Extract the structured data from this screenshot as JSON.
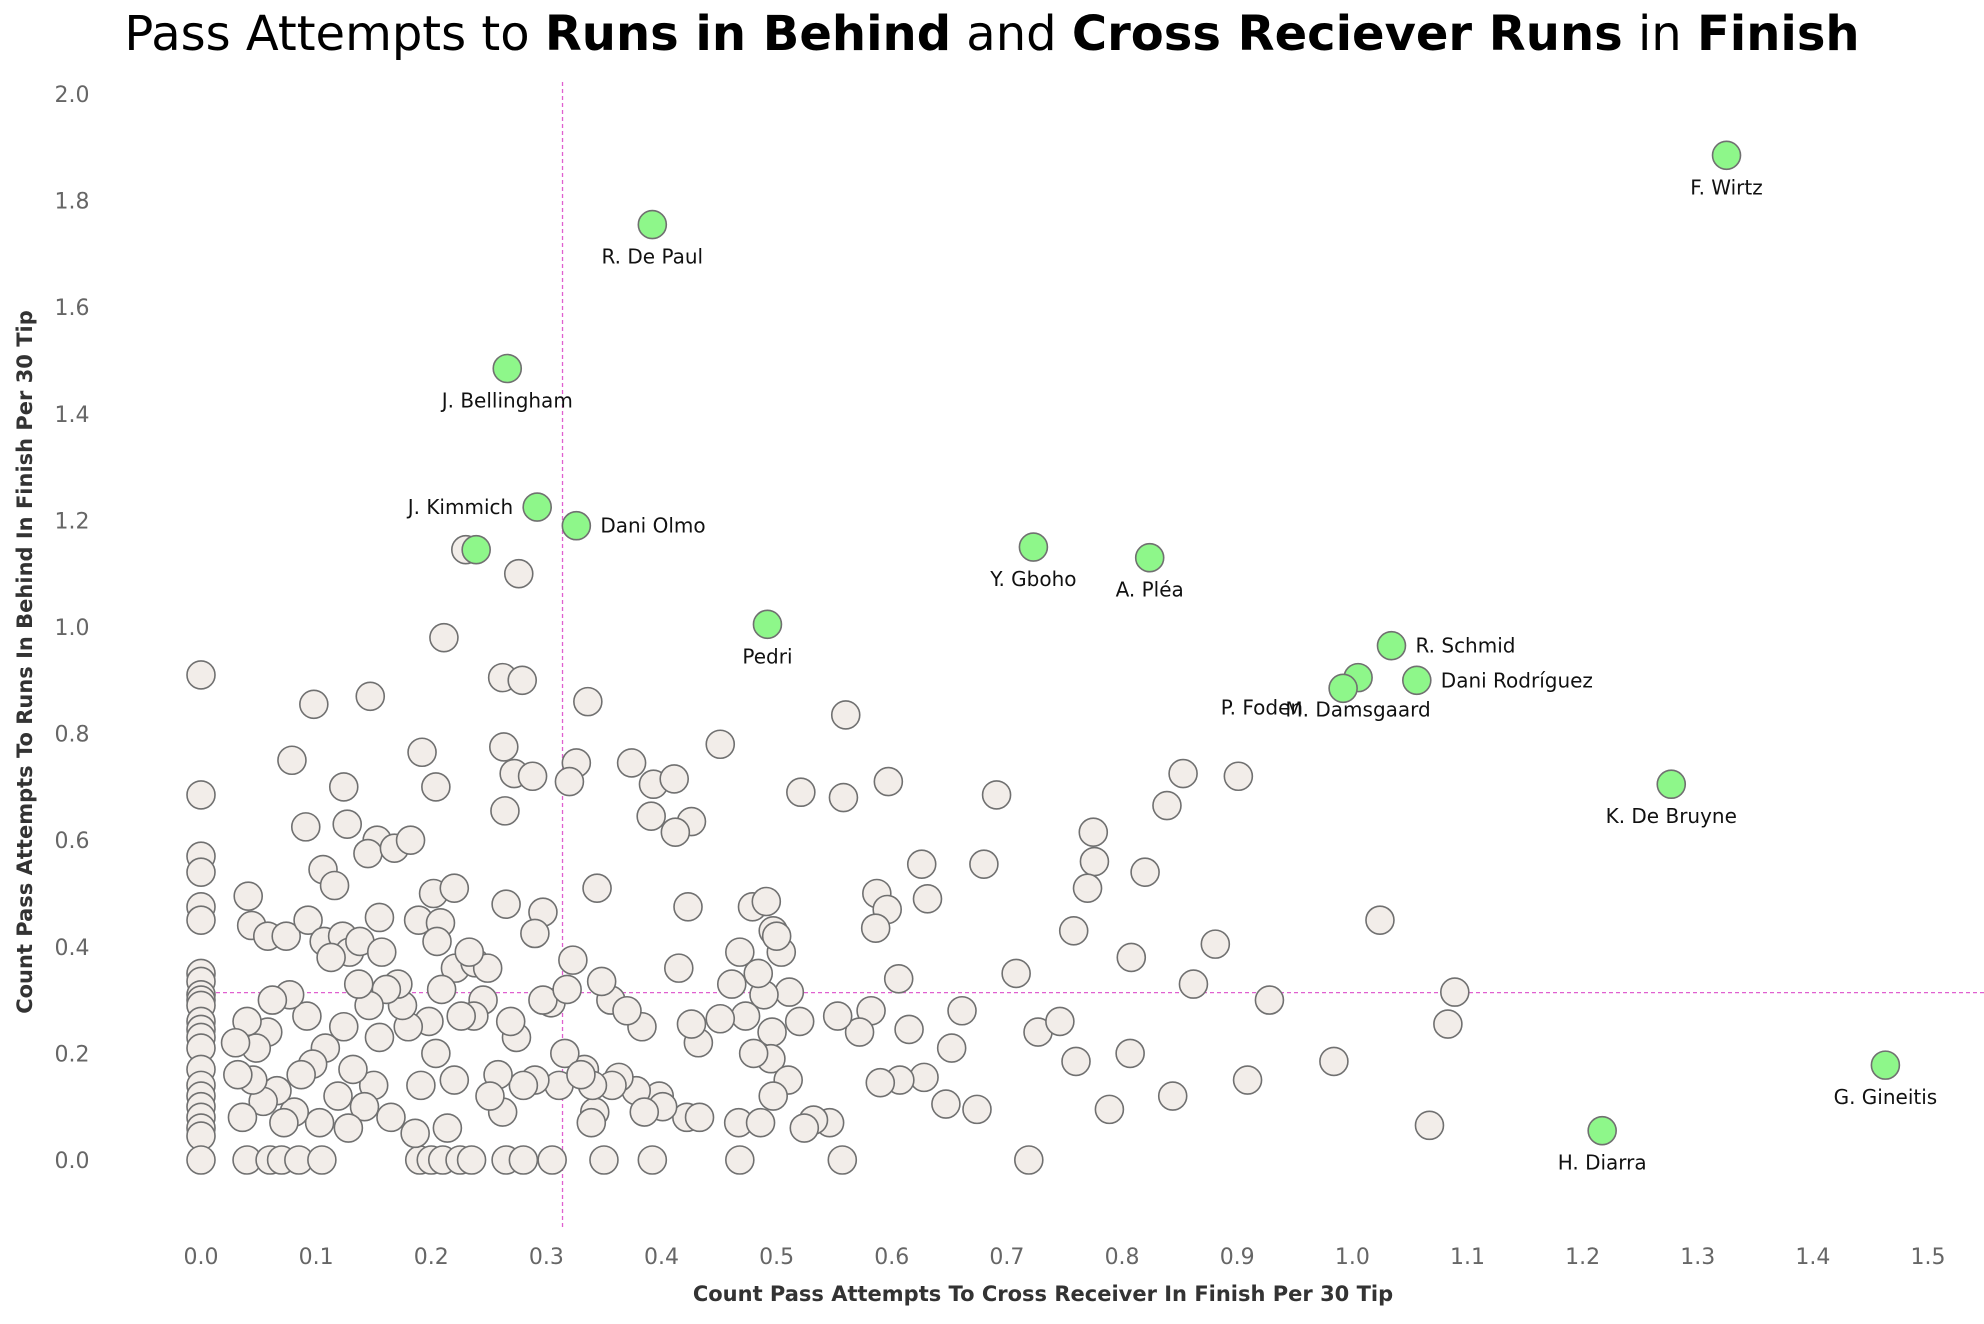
{
  "chart_data": {
    "type": "scatter",
    "title": {
      "parts": [
        {
          "text": "Pass Attempts to ",
          "bold": false
        },
        {
          "text": "Runs in Behind",
          "bold": true
        },
        {
          "text": " and ",
          "bold": false
        },
        {
          "text": "Cross Reciever Runs",
          "bold": true
        },
        {
          "text": " in ",
          "bold": false
        },
        {
          "text": "Finish",
          "bold": true
        }
      ]
    },
    "xlabel": "Count Pass Attempts To Cross Receiver In Finish Per 30 Tip",
    "ylabel": "Count Pass Attempts To Runs In Behind In Finish Per 30 Tip",
    "xlim": [
      -0.02,
      1.52
    ],
    "ylim": [
      -0.13,
      2.02
    ],
    "xticks": [
      "0.0",
      "0.1",
      "0.2",
      "0.3",
      "0.4",
      "0.5",
      "0.6",
      "0.7",
      "0.8",
      "0.9",
      "1.0",
      "1.1",
      "1.2",
      "1.3",
      "1.4",
      "1.5"
    ],
    "yticks": [
      "0.0",
      "0.2",
      "0.4",
      "0.6",
      "0.8",
      "1.0",
      "1.2",
      "1.4",
      "1.6",
      "1.8",
      "2.0"
    ],
    "reference_lines": {
      "x": 0.314,
      "y": 0.314
    },
    "colors": {
      "highlight_fill": "#8ef78a",
      "default_fill": "#f2ede9",
      "marker_edge": "#707070",
      "reference_line": "#e060d0"
    },
    "highlighted": [
      {
        "name": "F. Wirtz",
        "x": 1.325,
        "y": 1.885,
        "label_pos": "below"
      },
      {
        "name": "R. De Paul",
        "x": 0.392,
        "y": 1.755,
        "label_pos": "below"
      },
      {
        "name": "J. Bellingham",
        "x": 0.266,
        "y": 1.485,
        "label_pos": "below"
      },
      {
        "name": "J. Kimmich",
        "x": 0.292,
        "y": 1.225,
        "label_pos": "left"
      },
      {
        "name": "Dani Olmo",
        "x": 0.326,
        "y": 1.19,
        "label_pos": "right"
      },
      {
        "name": "",
        "x": 0.239,
        "y": 1.145,
        "label_pos": "none"
      },
      {
        "name": "Y. Gboho",
        "x": 0.723,
        "y": 1.15,
        "label_pos": "below"
      },
      {
        "name": "A. Pléa",
        "x": 0.824,
        "y": 1.13,
        "label_pos": "below"
      },
      {
        "name": "Pedri",
        "x": 0.492,
        "y": 1.005,
        "label_pos": "below"
      },
      {
        "name": "R. Schmid",
        "x": 1.034,
        "y": 0.965,
        "label_pos": "right"
      },
      {
        "name": "Dani Rodríguez",
        "x": 1.056,
        "y": 0.9,
        "label_pos": "right"
      },
      {
        "name": "M. Damsgaard",
        "x": 1.005,
        "y": 0.905,
        "label_pos": "below"
      },
      {
        "name": "P. Foden",
        "x": 0.992,
        "y": 0.885,
        "label_pos": "left"
      },
      {
        "name": "K. De Bruyne",
        "x": 1.277,
        "y": 0.705,
        "label_pos": "below"
      },
      {
        "name": "G. Gineitis",
        "x": 1.463,
        "y": 0.178,
        "label_pos": "below"
      },
      {
        "name": "H. Diarra",
        "x": 1.217,
        "y": 0.055,
        "label_pos": "below"
      }
    ],
    "others": [
      [
        0.0,
        0.91
      ],
      [
        0.0,
        0.685
      ],
      [
        0.0,
        0.57
      ],
      [
        0.0,
        0.54
      ],
      [
        0.0,
        0.475
      ],
      [
        0.0,
        0.45
      ],
      [
        0.0,
        0.35
      ],
      [
        0.0,
        0.335
      ],
      [
        0.0,
        0.31
      ],
      [
        0.0,
        0.3
      ],
      [
        0.0,
        0.29
      ],
      [
        0.0,
        0.26
      ],
      [
        0.0,
        0.245
      ],
      [
        0.0,
        0.23
      ],
      [
        0.0,
        0.21
      ],
      [
        0.0,
        0.17
      ],
      [
        0.0,
        0.14
      ],
      [
        0.0,
        0.12
      ],
      [
        0.0,
        0.1
      ],
      [
        0.0,
        0.08
      ],
      [
        0.0,
        0.06
      ],
      [
        0.0,
        0.045
      ],
      [
        0.0,
        0.0
      ],
      [
        0.04,
        0.0
      ],
      [
        0.06,
        0.0
      ],
      [
        0.07,
        0.0
      ],
      [
        0.085,
        0.0
      ],
      [
        0.105,
        0.0
      ],
      [
        0.19,
        0.0
      ],
      [
        0.2,
        0.0
      ],
      [
        0.21,
        0.0
      ],
      [
        0.225,
        0.0
      ],
      [
        0.235,
        0.0
      ],
      [
        0.265,
        0.0
      ],
      [
        0.28,
        0.0
      ],
      [
        0.305,
        0.0
      ],
      [
        0.35,
        0.0
      ],
      [
        0.392,
        0.0
      ],
      [
        0.468,
        0.0
      ],
      [
        0.557,
        0.0
      ],
      [
        0.719,
        0.0
      ],
      [
        0.23,
        1.145
      ],
      [
        0.276,
        1.1
      ],
      [
        0.211,
        0.98
      ],
      [
        0.262,
        0.905
      ],
      [
        0.279,
        0.9
      ],
      [
        0.336,
        0.86
      ],
      [
        0.098,
        0.855
      ],
      [
        0.147,
        0.87
      ],
      [
        0.451,
        0.78
      ],
      [
        0.56,
        0.835
      ],
      [
        0.079,
        0.75
      ],
      [
        0.192,
        0.765
      ],
      [
        0.263,
        0.775
      ],
      [
        0.272,
        0.725
      ],
      [
        0.288,
        0.72
      ],
      [
        0.326,
        0.745
      ],
      [
        0.374,
        0.745
      ],
      [
        0.393,
        0.705
      ],
      [
        0.411,
        0.715
      ],
      [
        0.32,
        0.71
      ],
      [
        0.204,
        0.7
      ],
      [
        0.124,
        0.7
      ],
      [
        0.264,
        0.655
      ],
      [
        0.391,
        0.645
      ],
      [
        0.426,
        0.635
      ],
      [
        0.412,
        0.615
      ],
      [
        0.521,
        0.69
      ],
      [
        0.558,
        0.68
      ],
      [
        0.597,
        0.71
      ],
      [
        0.691,
        0.685
      ],
      [
        0.091,
        0.625
      ],
      [
        0.127,
        0.63
      ],
      [
        0.153,
        0.6
      ],
      [
        0.145,
        0.575
      ],
      [
        0.168,
        0.585
      ],
      [
        0.182,
        0.6
      ],
      [
        0.106,
        0.545
      ],
      [
        0.116,
        0.515
      ],
      [
        0.202,
        0.5
      ],
      [
        0.22,
        0.51
      ],
      [
        0.265,
        0.48
      ],
      [
        0.297,
        0.465
      ],
      [
        0.344,
        0.51
      ],
      [
        0.423,
        0.475
      ],
      [
        0.479,
        0.475
      ],
      [
        0.491,
        0.485
      ],
      [
        0.587,
        0.5
      ],
      [
        0.596,
        0.47
      ],
      [
        0.626,
        0.555
      ],
      [
        0.631,
        0.49
      ],
      [
        0.68,
        0.555
      ],
      [
        0.775,
        0.615
      ],
      [
        0.776,
        0.56
      ],
      [
        0.77,
        0.51
      ],
      [
        0.82,
        0.54
      ],
      [
        0.839,
        0.665
      ],
      [
        0.853,
        0.725
      ],
      [
        0.901,
        0.72
      ],
      [
        0.041,
        0.495
      ],
      [
        0.044,
        0.44
      ],
      [
        0.058,
        0.42
      ],
      [
        0.074,
        0.42
      ],
      [
        0.093,
        0.45
      ],
      [
        0.107,
        0.41
      ],
      [
        0.123,
        0.42
      ],
      [
        0.129,
        0.39
      ],
      [
        0.138,
        0.41
      ],
      [
        0.155,
        0.455
      ],
      [
        0.157,
        0.39
      ],
      [
        0.189,
        0.45
      ],
      [
        0.208,
        0.445
      ],
      [
        0.205,
        0.41
      ],
      [
        0.221,
        0.36
      ],
      [
        0.238,
        0.37
      ],
      [
        0.249,
        0.36
      ],
      [
        0.29,
        0.425
      ],
      [
        0.323,
        0.375
      ],
      [
        0.356,
        0.3
      ],
      [
        0.497,
        0.43
      ],
      [
        0.504,
        0.39
      ],
      [
        0.586,
        0.435
      ],
      [
        0.758,
        0.43
      ],
      [
        0.808,
        0.38
      ],
      [
        0.881,
        0.405
      ],
      [
        0.862,
        0.33
      ],
      [
        0.928,
        0.3
      ],
      [
        1.024,
        0.45
      ],
      [
        1.089,
        0.315
      ],
      [
        1.083,
        0.255
      ],
      [
        0.984,
        0.185
      ],
      [
        0.909,
        0.15
      ],
      [
        0.844,
        0.12
      ],
      [
        0.789,
        0.095
      ],
      [
        0.807,
        0.2
      ],
      [
        0.76,
        0.185
      ],
      [
        0.727,
        0.24
      ],
      [
        0.746,
        0.26
      ],
      [
        0.708,
        0.35
      ],
      [
        0.674,
        0.095
      ],
      [
        0.661,
        0.28
      ],
      [
        0.652,
        0.21
      ],
      [
        0.647,
        0.105
      ],
      [
        0.628,
        0.155
      ],
      [
        0.615,
        0.245
      ],
      [
        0.607,
        0.15
      ],
      [
        0.606,
        0.34
      ],
      [
        0.582,
        0.28
      ],
      [
        0.59,
        0.145
      ],
      [
        0.572,
        0.24
      ],
      [
        0.553,
        0.27
      ],
      [
        0.546,
        0.07
      ],
      [
        0.532,
        0.075
      ],
      [
        0.524,
        0.06
      ],
      [
        0.52,
        0.26
      ],
      [
        0.511,
        0.315
      ],
      [
        0.5,
        0.42
      ],
      [
        0.496,
        0.24
      ],
      [
        0.489,
        0.31
      ],
      [
        0.484,
        0.35
      ],
      [
        0.473,
        0.27
      ],
      [
        0.468,
        0.39
      ],
      [
        0.461,
        0.33
      ],
      [
        0.451,
        0.265
      ],
      [
        0.432,
        0.22
      ],
      [
        0.426,
        0.255
      ],
      [
        0.422,
        0.08
      ],
      [
        0.415,
        0.36
      ],
      [
        0.398,
        0.12
      ],
      [
        0.383,
        0.25
      ],
      [
        0.378,
        0.13
      ],
      [
        0.37,
        0.28
      ],
      [
        0.363,
        0.155
      ],
      [
        0.357,
        0.14
      ],
      [
        0.348,
        0.335
      ],
      [
        0.342,
        0.09
      ],
      [
        0.339,
        0.07
      ],
      [
        0.333,
        0.17
      ],
      [
        0.316,
        0.2
      ],
      [
        0.311,
        0.14
      ],
      [
        0.304,
        0.295
      ],
      [
        0.297,
        0.3
      ],
      [
        0.29,
        0.15
      ],
      [
        0.28,
        0.14
      ],
      [
        0.274,
        0.23
      ],
      [
        0.269,
        0.26
      ],
      [
        0.262,
        0.09
      ],
      [
        0.258,
        0.16
      ],
      [
        0.251,
        0.12
      ],
      [
        0.245,
        0.3
      ],
      [
        0.237,
        0.27
      ],
      [
        0.233,
        0.39
      ],
      [
        0.226,
        0.27
      ],
      [
        0.22,
        0.15
      ],
      [
        0.214,
        0.06
      ],
      [
        0.209,
        0.32
      ],
      [
        0.204,
        0.2
      ],
      [
        0.198,
        0.26
      ],
      [
        0.191,
        0.14
      ],
      [
        0.186,
        0.05
      ],
      [
        0.18,
        0.25
      ],
      [
        0.175,
        0.29
      ],
      [
        0.171,
        0.33
      ],
      [
        0.165,
        0.08
      ],
      [
        0.161,
        0.32
      ],
      [
        0.155,
        0.23
      ],
      [
        0.15,
        0.14
      ],
      [
        0.146,
        0.29
      ],
      [
        0.142,
        0.1
      ],
      [
        0.137,
        0.33
      ],
      [
        0.132,
        0.17
      ],
      [
        0.128,
        0.06
      ],
      [
        0.124,
        0.25
      ],
      [
        0.119,
        0.12
      ],
      [
        0.113,
        0.38
      ],
      [
        0.108,
        0.21
      ],
      [
        0.103,
        0.07
      ],
      [
        0.097,
        0.18
      ],
      [
        0.092,
        0.27
      ],
      [
        0.087,
        0.16
      ],
      [
        0.081,
        0.09
      ],
      [
        0.077,
        0.31
      ],
      [
        0.072,
        0.07
      ],
      [
        0.066,
        0.13
      ],
      [
        0.062,
        0.3
      ],
      [
        0.058,
        0.24
      ],
      [
        0.054,
        0.11
      ],
      [
        0.048,
        0.21
      ],
      [
        0.045,
        0.15
      ],
      [
        0.04,
        0.26
      ],
      [
        0.036,
        0.08
      ],
      [
        0.032,
        0.16
      ],
      [
        0.03,
        0.22
      ],
      [
        1.067,
        0.065
      ],
      [
        0.495,
        0.19
      ],
      [
        0.51,
        0.15
      ],
      [
        0.48,
        0.2
      ],
      [
        0.467,
        0.07
      ],
      [
        0.433,
        0.08
      ],
      [
        0.401,
        0.1
      ],
      [
        0.385,
        0.09
      ],
      [
        0.486,
        0.07
      ],
      [
        0.497,
        0.12
      ],
      [
        0.34,
        0.14
      ],
      [
        0.318,
        0.32
      ],
      [
        0.33,
        0.16
      ]
    ]
  }
}
